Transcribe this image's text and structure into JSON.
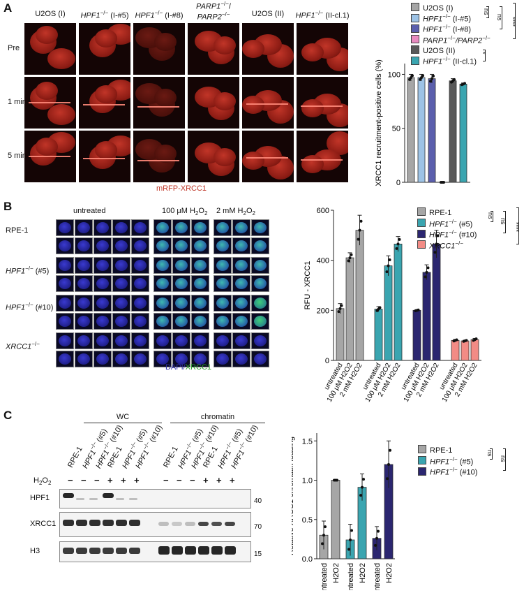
{
  "panelA": {
    "label": "A",
    "columns": [
      "U2OS (I)",
      "HPF1",
      "HPF1",
      "PARP1",
      "U2OS (II)",
      "HPF1"
    ],
    "col_sup": [
      "",
      "−/−",
      "−/−",
      "−/−",
      "",
      "−/−"
    ],
    "col_suffix": [
      "",
      " (I-#5)",
      " (I-#8)",
      "/",
      "",
      " (II-cl.1)"
    ],
    "col_line2": [
      "",
      "",
      "",
      "PARP2",
      "",
      ""
    ],
    "col_line2_sup": [
      "",
      "",
      "",
      "−/−",
      "",
      ""
    ],
    "rows": [
      "Pre",
      "1 min",
      "5 min"
    ],
    "caption": "mRFP-XRCC1",
    "legend": [
      {
        "parts": [
          "U2OS (I)"
        ],
        "color": "#a6a6a6"
      },
      {
        "parts": [
          "HPF1",
          "−/−",
          " (I-#5)"
        ],
        "color": "#9dc3e6"
      },
      {
        "parts": [
          "HPF1",
          "−/−",
          " (I-#8)"
        ],
        "color": "#5b5fad"
      },
      {
        "parts": [
          "PARP1",
          "−/−",
          "/PARP2",
          "−/−"
        ],
        "color": "#e88bc0"
      },
      {
        "parts": [
          "U2OS (II)"
        ],
        "color": "#595959"
      },
      {
        "parts": [
          "HPF1",
          "−/−",
          " (II-cl.1)"
        ],
        "color": "#3aa5b0"
      }
    ],
    "sig": [
      "ns",
      "ns",
      "****",
      "*"
    ]
  },
  "panelB": {
    "label": "B",
    "col_headers": [
      "untreated",
      "100 μM H",
      "2 mM H"
    ],
    "rows": [
      "RPE-1",
      "HPF1",
      "HPF1",
      "XRCC1"
    ],
    "row_sup": [
      "",
      "−/−",
      "−/−",
      "−/−"
    ],
    "row_suffix": [
      "",
      " (#5)",
      " (#10)",
      ""
    ],
    "caption_a": "DAPI/",
    "caption_b": "XRCC1",
    "legend": [
      {
        "parts": [
          "RPE-1"
        ],
        "color": "#a6a6a6"
      },
      {
        "parts": [
          "HPF1",
          "−/−",
          " (#5)"
        ],
        "color": "#3aa5b0"
      },
      {
        "parts": [
          "HPF1",
          "−/−",
          " (#10)"
        ],
        "color": "#2b2670"
      },
      {
        "parts": [
          "XRCC1",
          "−/−",
          ""
        ],
        "color": "#f28b85"
      }
    ],
    "sig": [
      "ns",
      "ns",
      "****"
    ]
  },
  "panelC": {
    "label": "C",
    "group_wc": "WC",
    "group_chromatin": "chromatin",
    "lane_labels": [
      "RPE-1",
      "HPF1−/− (#5)",
      "HPF1−/− (#10)",
      "RPE-1",
      "HPF1−/− (#5)",
      "HPF1−/− (#10)"
    ],
    "h2o2_label": "H2O2",
    "h2o2_signs": [
      "−",
      "−",
      "−",
      "+",
      "+",
      "+"
    ],
    "blot_rows": [
      "HPF1",
      "XRCC1",
      "H3"
    ],
    "mw": [
      "40",
      "70",
      "15"
    ],
    "legend": [
      {
        "parts": [
          "RPE-1"
        ],
        "color": "#a6a6a6"
      },
      {
        "parts": [
          "HPF1",
          "−/−",
          " (#5)"
        ],
        "color": "#3aa5b0"
      },
      {
        "parts": [
          "HPF1",
          "−/−",
          " (#10)"
        ],
        "color": "#2b2670"
      }
    ],
    "sig": [
      "ns",
      "ns"
    ]
  },
  "chart_data": [
    {
      "type": "bar",
      "ylabel": "XRCC1 recruitment-positive cells (%)",
      "ylim": [
        0,
        110
      ],
      "yticks": [
        0,
        50,
        100
      ],
      "categories": [
        "U2OS (I)",
        "HPF1−/− (I-#5)",
        "HPF1−/− (I-#8)",
        "PARP1−/−/PARP2−/−",
        "U2OS (II)",
        "HPF1−/− (II-cl.1)"
      ],
      "values": [
        97,
        97,
        96,
        0,
        94,
        91
      ],
      "errors": [
        3,
        3,
        4,
        0,
        2,
        1
      ],
      "colors": [
        "#a6a6a6",
        "#9dc3e6",
        "#5b5fad",
        "#e88bc0",
        "#595959",
        "#3aa5b0"
      ]
    },
    {
      "type": "bar",
      "ylabel": "RFU - XRCC1",
      "ylim": [
        0,
        600
      ],
      "yticks": [
        0,
        200,
        400,
        600
      ],
      "categories": [
        "untreated",
        "100 μM H2O2",
        "2 mM H2O2"
      ],
      "series": [
        {
          "name": "RPE-1",
          "values": [
            207,
            410,
            520
          ],
          "errors": [
            20,
            20,
            60
          ],
          "color": "#a6a6a6"
        },
        {
          "name": "HPF1−/− (#5)",
          "values": [
            205,
            378,
            465
          ],
          "errors": [
            10,
            40,
            30
          ],
          "color": "#3aa5b0"
        },
        {
          "name": "HPF1−/− (#10)",
          "values": [
            200,
            352,
            465
          ],
          "errors": [
            3,
            30,
            55
          ],
          "color": "#2b2670"
        },
        {
          "name": "XRCC1−/−",
          "values": [
            80,
            78,
            83
          ],
          "errors": [
            4,
            3,
            5
          ],
          "color": "#f28b85"
        }
      ]
    },
    {
      "type": "bar",
      "ylabel": "Relative XRCC1 chromatin loading",
      "ylim": [
        0,
        1.6
      ],
      "yticks": [
        0.0,
        0.5,
        1.0,
        1.5
      ],
      "categories": [
        "untreated",
        "H2O2"
      ],
      "series": [
        {
          "name": "RPE-1",
          "values": [
            0.3,
            1.0
          ],
          "errors": [
            0.18,
            0.0
          ],
          "color": "#a6a6a6"
        },
        {
          "name": "HPF1−/− (#5)",
          "values": [
            0.24,
            0.91
          ],
          "errors": [
            0.2,
            0.17
          ],
          "color": "#3aa5b0"
        },
        {
          "name": "HPF1−/− (#10)",
          "values": [
            0.26,
            1.2
          ],
          "errors": [
            0.15,
            0.3
          ],
          "color": "#2b2670"
        }
      ]
    }
  ]
}
